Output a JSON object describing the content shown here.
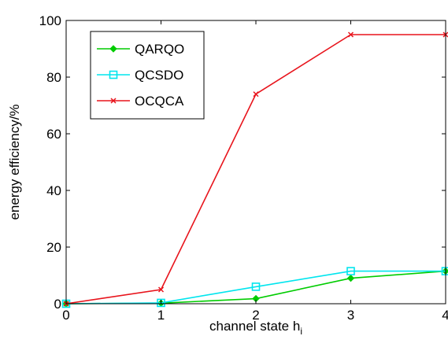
{
  "chart_data": {
    "type": "line",
    "xlabel": "channel state h",
    "xlabel_subscript": "i",
    "ylabel": "energy efficiency/%",
    "xlim": [
      0,
      4
    ],
    "ylim": [
      0,
      100
    ],
    "x_ticks": [
      0,
      1,
      2,
      3,
      4
    ],
    "y_ticks": [
      0,
      20,
      40,
      60,
      80,
      100
    ],
    "grid": false,
    "legend_position": "top-left",
    "x": [
      0,
      1,
      2,
      3,
      4
    ],
    "series": [
      {
        "name": "QARQO",
        "color": "#00cc00",
        "marker": "diamond",
        "values": [
          0,
          0.2,
          1.8,
          9,
          11.5
        ]
      },
      {
        "name": "QCSDO",
        "color": "#00e5ee",
        "marker": "square",
        "values": [
          0,
          0.3,
          6,
          11.5,
          11.5
        ]
      },
      {
        "name": "OCQCA",
        "color": "#e8141c",
        "marker": "x",
        "values": [
          0,
          5,
          74,
          95,
          95
        ]
      }
    ]
  }
}
